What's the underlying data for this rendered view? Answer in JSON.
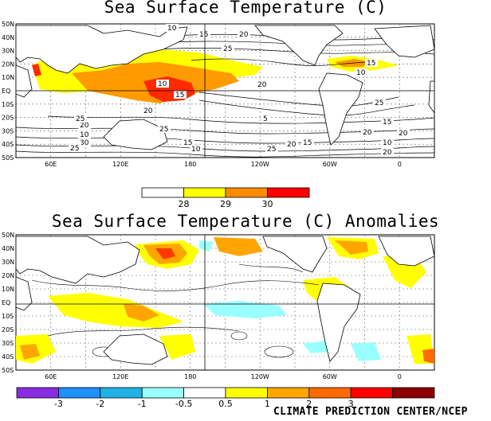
{
  "map1": {
    "title": "Sea Surface Temperature (C)",
    "lat_labels": [
      "50N",
      "40N",
      "30N",
      "20N",
      "10N",
      "EQ",
      "10S",
      "20S",
      "30S",
      "40S",
      "50S"
    ],
    "lon_labels": [
      "60E",
      "120E",
      "180",
      "120W",
      "60W",
      "0"
    ],
    "contour_labels": [
      "10",
      "15",
      "20",
      "25",
      "10",
      "15",
      "20",
      "25",
      "30",
      "25",
      "25",
      "20",
      "15",
      "10",
      "5",
      "20",
      "25",
      "15",
      "20",
      "10",
      "20",
      "15",
      "10",
      "25",
      "20",
      "25",
      "20",
      "15",
      "10"
    ],
    "colorbar": {
      "labels": [
        "28",
        "29",
        "30"
      ],
      "colors": [
        "#ffffff",
        "#ffff00",
        "#ff8c00",
        "#ff0000"
      ]
    }
  },
  "map2": {
    "title": "Sea Surface Temperature (C) Anomalies",
    "lat_labels": [
      "50N",
      "40N",
      "30N",
      "20N",
      "10N",
      "EQ",
      "10S",
      "20S",
      "30S",
      "40S",
      "50S"
    ],
    "lon_labels": [
      "60E",
      "120E",
      "180",
      "120W",
      "60W",
      "0"
    ],
    "colorbar": {
      "labels": [
        "-3",
        "-2",
        "-1",
        "-0.5",
        "0.5",
        "1",
        "2",
        "3"
      ],
      "colors": [
        "#8a2be2",
        "#1e90ff",
        "#20b2e6",
        "#99ffff",
        "#ffffff",
        "#ffff00",
        "#ffa500",
        "#ff6a00",
        "#ff0000",
        "#8b0000"
      ]
    }
  },
  "credit": "CLIMATE PREDICTION CENTER/NCEP"
}
